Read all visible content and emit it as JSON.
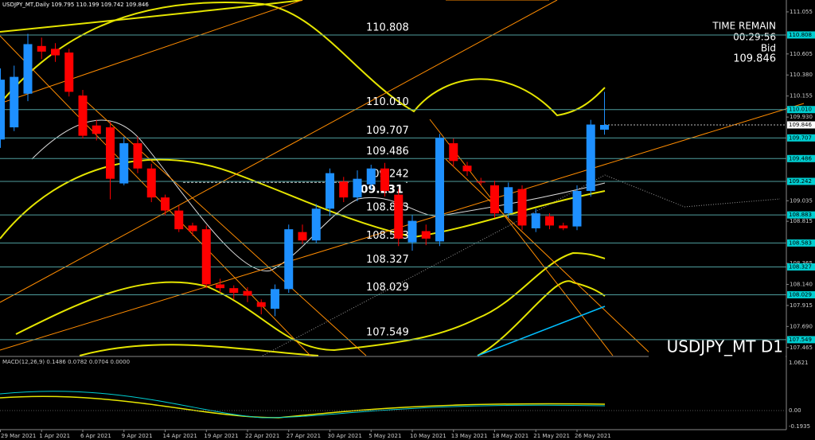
{
  "chart_data": {
    "type": "candlestick",
    "title": "USDJPY_MT,Daily  109.795 110.199 109.742 109.846",
    "symbol_label": "USDJPY_MT D1",
    "info": {
      "time_remain_label": "TIME REMAIN",
      "time": "00:29:56",
      "bid_label": "Bid",
      "bid": {
        "value": 109.846,
        "label": "109.846"
      }
    },
    "categories": [
      "29 Mar 2021",
      null,
      null,
      "1 Apr 2021",
      null,
      null,
      "6 Apr 2021",
      null,
      null,
      "9 Apr 2021",
      null,
      null,
      "14 Apr 2021",
      null,
      null,
      "19 Apr 2021",
      null,
      null,
      "22 Apr 2021",
      null,
      null,
      "27 Apr 2021",
      null,
      null,
      "30 Apr 2021",
      null,
      null,
      "5 May 2021",
      null,
      null,
      "10 May 2021",
      null,
      null,
      "13 May 2021",
      null,
      null,
      "18 May 2021",
      null,
      null,
      "21 May 2021",
      null,
      null,
      "26 May 2021",
      null,
      null
    ],
    "open": [
      109.69,
      109.82,
      110.18,
      110.69,
      110.66,
      110.62,
      110.16,
      109.84,
      109.82,
      109.22,
      109.65,
      109.38,
      109.07,
      108.93,
      108.77,
      108.73,
      108.14,
      108.1,
      108.07,
      107.95,
      107.88,
      108.09,
      108.7,
      108.61,
      108.95,
      109.24,
      109.07,
      109.21,
      109.38,
      109.1,
      108.59,
      108.71,
      108.6,
      109.65,
      109.41,
      109.24,
      109.2,
      108.9,
      109.16,
      108.74,
      108.87,
      108.77,
      108.76,
      109.14,
      109.795
    ],
    "high": [
      110.45,
      110.48,
      110.82,
      110.78,
      110.72,
      110.66,
      110.22,
      109.9,
      109.88,
      109.72,
      109.72,
      109.43,
      109.1,
      108.98,
      108.8,
      108.77,
      108.2,
      108.13,
      108.11,
      107.98,
      108.14,
      108.78,
      108.78,
      109.0,
      109.38,
      109.29,
      109.36,
      109.42,
      109.44,
      109.16,
      108.88,
      108.78,
      109.75,
      109.7,
      109.45,
      109.28,
      109.25,
      109.23,
      109.2,
      108.95,
      108.9,
      108.8,
      109.2,
      109.9,
      110.199
    ],
    "low": [
      109.6,
      109.78,
      110.1,
      110.55,
      110.52,
      110.15,
      109.7,
      109.68,
      109.05,
      109.2,
      109.33,
      109.02,
      108.88,
      108.7,
      108.66,
      108.1,
      108.05,
      107.98,
      107.95,
      107.82,
      107.8,
      108.05,
      108.57,
      108.58,
      108.87,
      109.02,
      109.03,
      109.15,
      109.08,
      108.55,
      108.5,
      108.56,
      108.55,
      109.4,
      109.3,
      109.2,
      108.85,
      108.85,
      108.72,
      108.7,
      108.73,
      108.72,
      108.72,
      109.08,
      109.742
    ],
    "close": [
      110.33,
      110.36,
      110.71,
      110.63,
      110.59,
      110.2,
      109.73,
      109.75,
      109.27,
      109.65,
      109.38,
      109.07,
      108.93,
      108.73,
      108.71,
      108.14,
      108.1,
      108.05,
      108.02,
      107.9,
      108.09,
      108.73,
      108.61,
      108.95,
      109.33,
      109.07,
      109.27,
      109.38,
      109.14,
      108.63,
      108.82,
      108.63,
      109.71,
      109.46,
      109.35,
      109.23,
      108.9,
      109.18,
      108.77,
      108.9,
      108.77,
      108.74,
      109.14,
      109.85,
      109.846
    ],
    "up_color": "#1e90ff",
    "down_color": "#ff0000",
    "ylim": [
      107.378,
      111.182
    ],
    "yticks": [
      {
        "value": 111.055,
        "label": "111.055"
      },
      {
        "value": 110.605,
        "label": "110.605"
      },
      {
        "value": 110.38,
        "label": "110.380"
      },
      {
        "value": 110.155,
        "label": "110.155"
      },
      {
        "value": 109.93,
        "label": "109.930"
      },
      {
        "value": 109.035,
        "label": "109.035"
      },
      {
        "value": 108.815,
        "label": "108.815"
      },
      {
        "value": 108.365,
        "label": "108.365"
      },
      {
        "value": 108.14,
        "label": "108.140"
      },
      {
        "value": 107.915,
        "label": "107.915"
      },
      {
        "value": 107.69,
        "label": "107.690"
      },
      {
        "value": 107.465,
        "label": "107.465"
      }
    ],
    "levels": [
      {
        "value": 110.808,
        "label": "110.808"
      },
      {
        "value": 110.01,
        "label": "110.010"
      },
      {
        "value": 109.707,
        "label": "109.707"
      },
      {
        "value": 109.486,
        "label": "109.486"
      },
      {
        "value": 109.242,
        "label": "109.242"
      },
      {
        "value": 108.883,
        "label": "108.883"
      },
      {
        "value": 108.583,
        "label": "108.583"
      },
      {
        "value": 108.327,
        "label": "108.327"
      },
      {
        "value": 108.029,
        "label": "108.029"
      },
      {
        "value": 107.549,
        "label": "107.549"
      }
    ],
    "level_color": "#4f9e9e",
    "price_marker": {
      "value": 109.231,
      "label": "109.231"
    },
    "macd": {
      "label": "MACD(12,26,9) 0.1486 0.0782 0.0704 0.0000",
      "axis_labels": [
        "1.0621",
        "0.00",
        "-0.1935"
      ]
    }
  }
}
